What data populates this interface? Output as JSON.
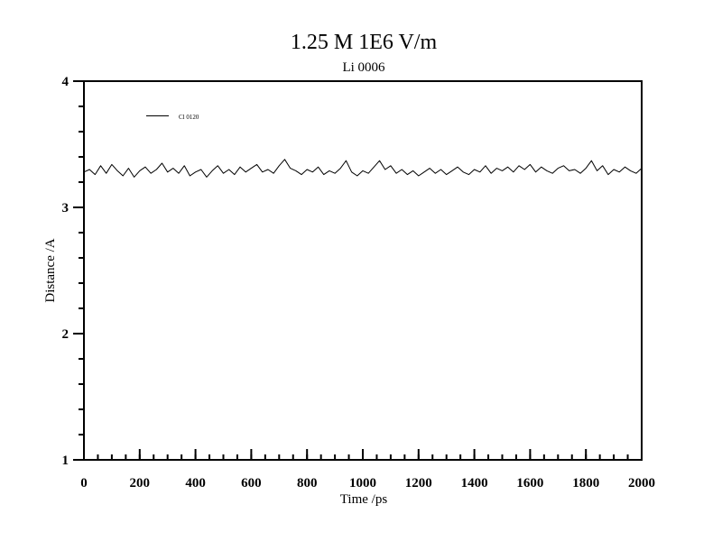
{
  "chart_data": {
    "type": "line",
    "title": "1.25 M 1E6 V/m",
    "subtitle": "Li 0006",
    "xlabel": "Time /ps",
    "ylabel": "Distance /A",
    "xlim": [
      0,
      2000
    ],
    "ylim": [
      1,
      4
    ],
    "x_major_ticks": [
      0,
      200,
      400,
      600,
      800,
      1000,
      1200,
      1400,
      1600,
      1800,
      2000
    ],
    "x_minor_step": 50,
    "y_major_ticks": [
      1,
      2,
      3,
      4
    ],
    "y_minor_step": 0.2,
    "x_tick_labels": [
      "0",
      "200",
      "400",
      "600",
      "800",
      "1000",
      "1200",
      "1400",
      "1600",
      "1800",
      "2000"
    ],
    "y_tick_labels": [
      "1",
      "2",
      "3",
      "4"
    ],
    "grid": false,
    "legend_position": "top-left",
    "line_color": "#000000",
    "series": [
      {
        "name": "Cl 0120",
        "x": [
          0,
          20,
          40,
          60,
          80,
          100,
          120,
          140,
          160,
          180,
          200,
          220,
          240,
          260,
          280,
          300,
          320,
          340,
          360,
          380,
          400,
          420,
          440,
          460,
          480,
          500,
          520,
          540,
          560,
          580,
          600,
          620,
          640,
          660,
          680,
          700,
          720,
          740,
          760,
          780,
          800,
          820,
          840,
          860,
          880,
          900,
          920,
          940,
          960,
          980,
          1000,
          1020,
          1040,
          1060,
          1080,
          1100,
          1120,
          1140,
          1160,
          1180,
          1200,
          1220,
          1240,
          1260,
          1280,
          1300,
          1320,
          1340,
          1360,
          1380,
          1400,
          1420,
          1440,
          1460,
          1480,
          1500,
          1520,
          1540,
          1560,
          1580,
          1600,
          1620,
          1640,
          1660,
          1680,
          1700,
          1720,
          1740,
          1760,
          1780,
          1800,
          1820,
          1840,
          1860,
          1880,
          1900,
          1920,
          1940,
          1960,
          1980,
          2000
        ],
        "y": [
          3.28,
          3.3,
          3.26,
          3.33,
          3.27,
          3.34,
          3.29,
          3.25,
          3.31,
          3.24,
          3.29,
          3.32,
          3.27,
          3.3,
          3.35,
          3.28,
          3.31,
          3.27,
          3.33,
          3.25,
          3.28,
          3.3,
          3.24,
          3.29,
          3.33,
          3.27,
          3.3,
          3.26,
          3.32,
          3.28,
          3.31,
          3.34,
          3.28,
          3.3,
          3.27,
          3.33,
          3.38,
          3.31,
          3.29,
          3.26,
          3.3,
          3.28,
          3.32,
          3.26,
          3.29,
          3.27,
          3.31,
          3.37,
          3.28,
          3.25,
          3.29,
          3.27,
          3.32,
          3.37,
          3.3,
          3.33,
          3.27,
          3.3,
          3.26,
          3.29,
          3.25,
          3.28,
          3.31,
          3.27,
          3.3,
          3.26,
          3.29,
          3.32,
          3.28,
          3.26,
          3.3,
          3.28,
          3.33,
          3.27,
          3.31,
          3.29,
          3.32,
          3.28,
          3.33,
          3.3,
          3.34,
          3.28,
          3.32,
          3.29,
          3.27,
          3.31,
          3.33,
          3.29,
          3.3,
          3.27,
          3.31,
          3.37,
          3.29,
          3.33,
          3.26,
          3.3,
          3.28,
          3.32,
          3.29,
          3.27,
          3.31
        ]
      }
    ]
  }
}
